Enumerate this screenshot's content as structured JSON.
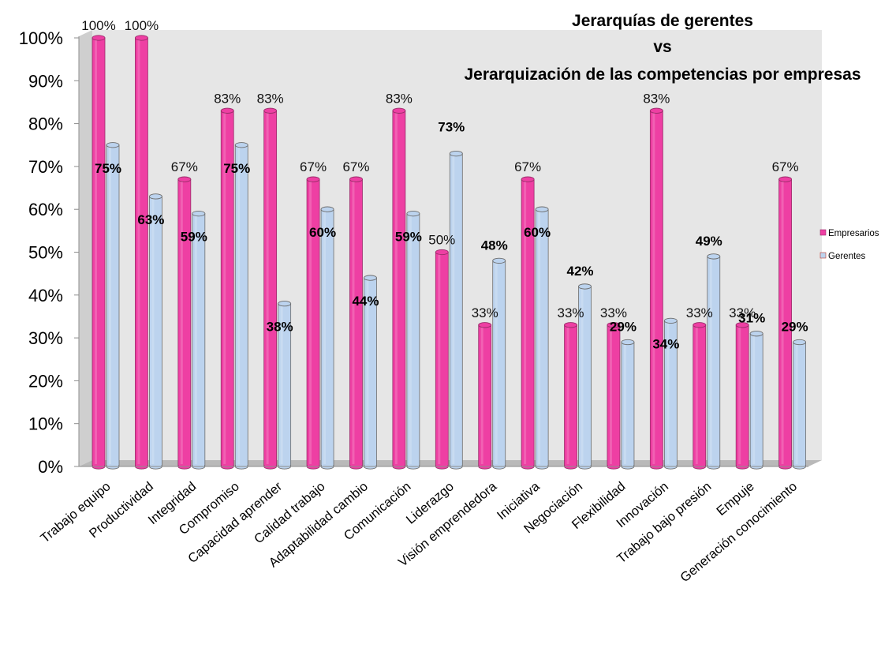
{
  "chart_data": {
    "type": "bar",
    "title_lines": [
      "Jerarquías de gerentes",
      "vs",
      "Jerarquización de las competencias por empresas"
    ],
    "categories": [
      "Trabajo equipo",
      "Productividad",
      "Integridad",
      "Compromiso",
      "Capacidad aprender",
      "Calidad trabajo",
      "Adaptabilidad cambio",
      "Comunicación",
      "Liderazgo",
      "Visión emprendedora",
      "Iniciativa",
      "Negociación",
      "Flexibilidad",
      "Innovación",
      "Trabajo bajo presión",
      "Empuje",
      "Generación conocimiento"
    ],
    "series": [
      {
        "name": "Empresarios",
        "color": "#ee3fa3",
        "values": [
          100,
          100,
          67,
          83,
          83,
          67,
          67,
          83,
          50,
          33,
          67,
          33,
          33,
          83,
          33,
          33,
          67
        ],
        "labels": [
          "100%",
          "100%",
          "67%",
          "83%",
          "83%",
          "67%",
          "67%",
          "83%",
          "50%",
          "33%",
          "67%",
          "33%",
          "33%",
          "83%",
          "33%",
          "33%",
          "67%"
        ]
      },
      {
        "name": "Gerentes",
        "color": "#bcd3ee",
        "values": [
          75,
          63,
          59,
          75,
          38,
          60,
          44,
          59,
          73,
          48,
          60,
          42,
          29,
          34,
          49,
          31,
          29
        ],
        "labels": [
          "75%",
          "63%",
          "59%",
          "75%",
          "38%",
          "60%",
          "44%",
          "59%",
          "73%",
          "48%",
          "60%",
          "42%",
          "29%",
          "34%",
          "49%",
          "31%",
          "29%"
        ]
      }
    ],
    "y_tick_labels": [
      "0%",
      "10%",
      "20%",
      "30%",
      "40%",
      "50%",
      "60%",
      "70%",
      "80%",
      "90%",
      "100%"
    ],
    "ylim": [
      0,
      100
    ],
    "xlabel": "",
    "ylabel": "",
    "grid": false,
    "legend_position": "right",
    "wall_color": "#e6e6e6",
    "floor_color": "#b9b9b9"
  }
}
